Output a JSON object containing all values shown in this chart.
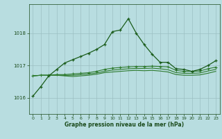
{
  "xlabel": "Graphe pression niveau de la mer (hPa)",
  "bg_color": "#b8dde0",
  "grid_color": "#9cbfc2",
  "line_color_dark": "#1a5c1a",
  "line_color_med": "#2d7a2d",
  "tick_color": "#1a4a1a",
  "ylim": [
    1015.5,
    1018.9
  ],
  "xlim": [
    -0.5,
    23.5
  ],
  "yticks": [
    1016,
    1017,
    1018
  ],
  "xticks": [
    0,
    1,
    2,
    3,
    4,
    5,
    6,
    7,
    8,
    9,
    10,
    11,
    12,
    13,
    14,
    15,
    16,
    17,
    18,
    19,
    20,
    21,
    22,
    23
  ],
  "series1": [
    1016.05,
    1016.35,
    1016.68,
    1016.88,
    1017.08,
    1017.18,
    1017.28,
    1017.38,
    1017.5,
    1017.65,
    1018.05,
    1018.1,
    1018.45,
    1018.0,
    1017.65,
    1017.35,
    1017.1,
    1017.1,
    1016.9,
    1016.88,
    1016.82,
    1016.88,
    1017.0,
    1017.15
  ],
  "series2": [
    1016.68,
    1016.7,
    1016.7,
    1016.72,
    1016.72,
    1016.74,
    1016.76,
    1016.78,
    1016.82,
    1016.88,
    1016.92,
    1016.94,
    1016.96,
    1016.97,
    1016.97,
    1016.98,
    1016.97,
    1016.96,
    1016.85,
    1016.82,
    1016.82,
    1016.83,
    1016.9,
    1016.95
  ],
  "series3": [
    1016.68,
    1016.7,
    1016.7,
    1016.7,
    1016.7,
    1016.7,
    1016.72,
    1016.74,
    1016.77,
    1016.82,
    1016.86,
    1016.88,
    1016.9,
    1016.91,
    1016.91,
    1016.92,
    1016.9,
    1016.87,
    1016.78,
    1016.76,
    1016.76,
    1016.77,
    1016.83,
    1016.88
  ],
  "series4": [
    1016.68,
    1016.7,
    1016.7,
    1016.7,
    1016.68,
    1016.66,
    1016.68,
    1016.7,
    1016.73,
    1016.78,
    1016.8,
    1016.82,
    1016.84,
    1016.85,
    1016.84,
    1016.85,
    1016.83,
    1016.8,
    1016.72,
    1016.7,
    1016.7,
    1016.71,
    1016.76,
    1016.82
  ]
}
